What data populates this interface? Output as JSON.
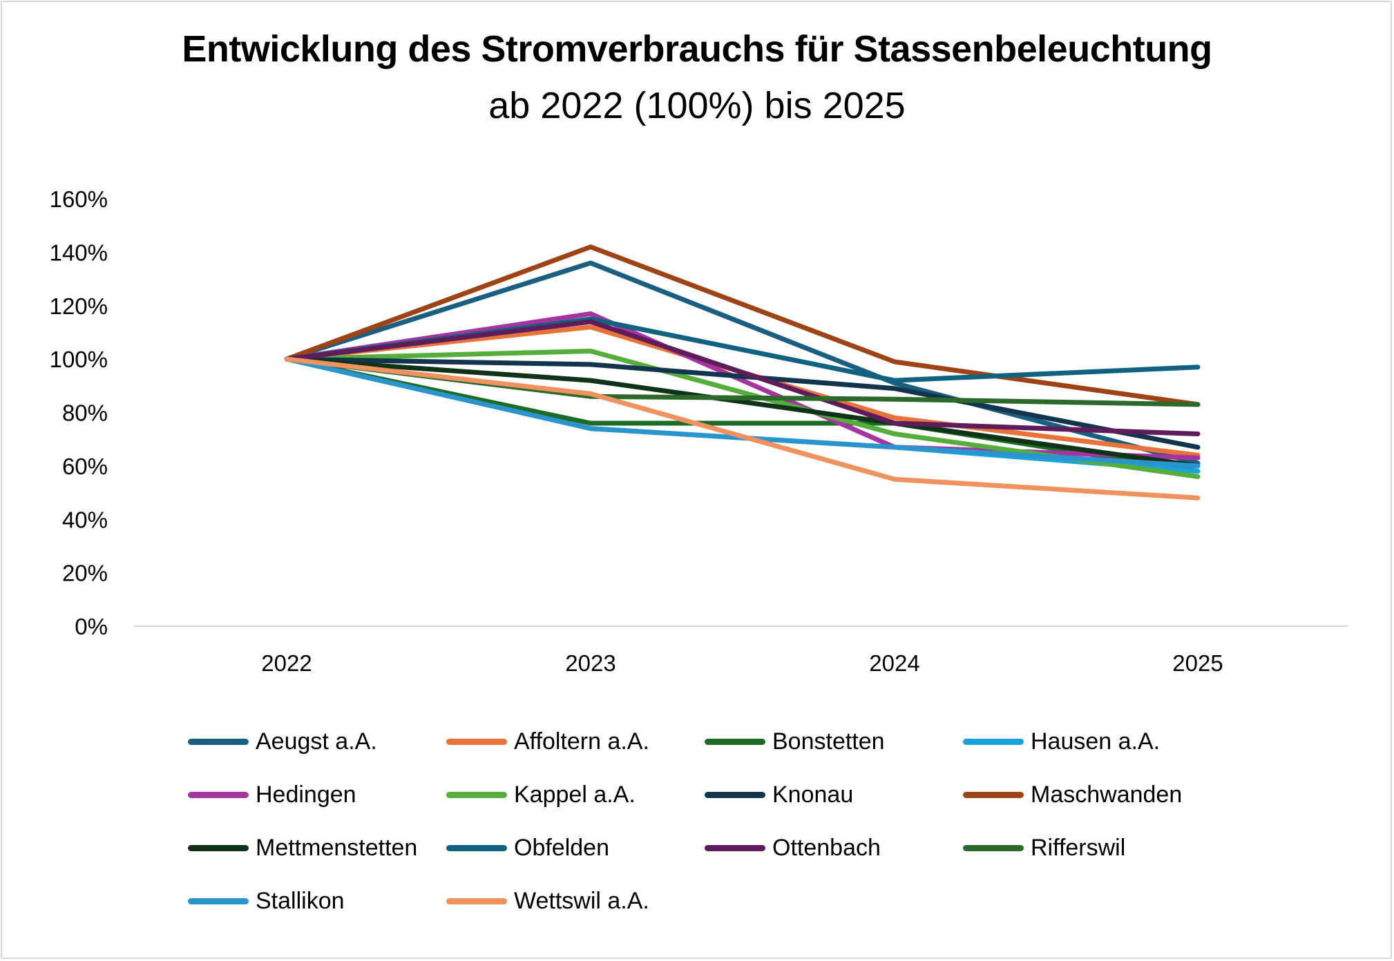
{
  "chart_data": {
    "type": "line",
    "title": "Entwicklung des Stromverbrauchs für Stassenbeleuchtung",
    "subtitle": "ab 2022 (100%) bis 2025",
    "x": [
      "2022",
      "2023",
      "2024",
      "2025"
    ],
    "ylim": [
      0,
      160
    ],
    "yticks": [
      "0%",
      "20%",
      "40%",
      "60%",
      "80%",
      "100%",
      "120%",
      "140%",
      "160%"
    ],
    "y_unit": "%",
    "grid": false,
    "legend_position": "bottom",
    "series": [
      {
        "name": "Aeugst a.A.",
        "color": "#1a5f7f",
        "values": [
          100,
          136,
          91,
          61
        ]
      },
      {
        "name": "Affoltern a.A.",
        "color": "#e8733a",
        "values": [
          100,
          112,
          78,
          64
        ]
      },
      {
        "name": "Bonstetten",
        "color": "#1e6b25",
        "values": [
          100,
          76,
          76,
          58
        ]
      },
      {
        "name": "Hausen a.A.",
        "color": "#19a2dd",
        "values": [
          100,
          74,
          67,
          58
        ]
      },
      {
        "name": "Hedingen",
        "color": "#a334a0",
        "values": [
          100,
          117,
          67,
          63
        ]
      },
      {
        "name": "Kappel a.A.",
        "color": "#55ad3c",
        "values": [
          100,
          103,
          72,
          56
        ]
      },
      {
        "name": "Knonau",
        "color": "#13344d",
        "values": [
          100,
          98,
          89,
          67
        ]
      },
      {
        "name": "Maschwanden",
        "color": "#9e4316",
        "values": [
          100,
          142,
          99,
          83
        ]
      },
      {
        "name": "Mettmenstetten",
        "color": "#0e3316",
        "values": [
          100,
          92,
          76,
          60
        ]
      },
      {
        "name": "Obfelden",
        "color": "#116280",
        "values": [
          100,
          115,
          92,
          97
        ]
      },
      {
        "name": "Ottenbach",
        "color": "#5e1c5b",
        "values": [
          100,
          114,
          76,
          72
        ]
      },
      {
        "name": "Rifferswil",
        "color": "#2c6a2c",
        "values": [
          100,
          86,
          85,
          83
        ]
      },
      {
        "name": "Stallikon",
        "color": "#2a95cc",
        "values": [
          100,
          74,
          67,
          60
        ]
      },
      {
        "name": "Wettswil a.A.",
        "color": "#f0925f",
        "values": [
          100,
          87,
          55,
          48
        ]
      }
    ]
  }
}
